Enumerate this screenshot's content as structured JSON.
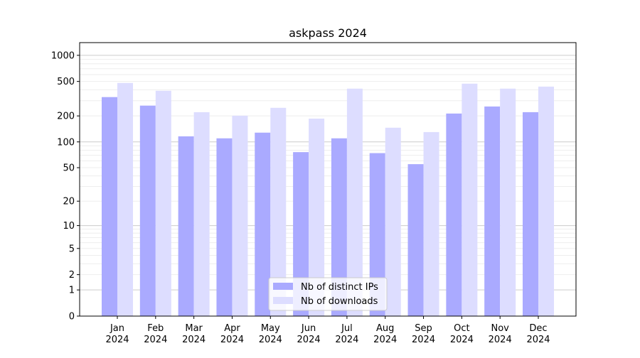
{
  "chart_data": {
    "type": "bar",
    "title": "askpass 2024",
    "xlabel": "",
    "ylabel": "",
    "yscale": "log10(1+y)",
    "ylim": [
      0,
      1400
    ],
    "yticks": [
      0,
      1,
      2,
      5,
      10,
      20,
      50,
      100,
      200,
      500,
      1000
    ],
    "grid": true,
    "legend_position": "bottom-center",
    "categories": [
      "Jan\n2024",
      "Feb\n2024",
      "Mar\n2024",
      "Apr\n2024",
      "May\n2024",
      "Jun\n2024",
      "Jul\n2024",
      "Aug\n2024",
      "Sep\n2024",
      "Oct\n2024",
      "Nov\n2024",
      "Dec\n2024"
    ],
    "series": [
      {
        "name": "Nb of distinct IPs",
        "color": "#aaaaff",
        "values": [
          330,
          263,
          116,
          110,
          128,
          76,
          110,
          74,
          55,
          213,
          257,
          221
        ]
      },
      {
        "name": "Nb of downloads",
        "color": "#ddddff",
        "values": [
          480,
          390,
          221,
          201,
          248,
          186,
          413,
          146,
          130,
          471,
          413,
          436
        ]
      }
    ]
  }
}
